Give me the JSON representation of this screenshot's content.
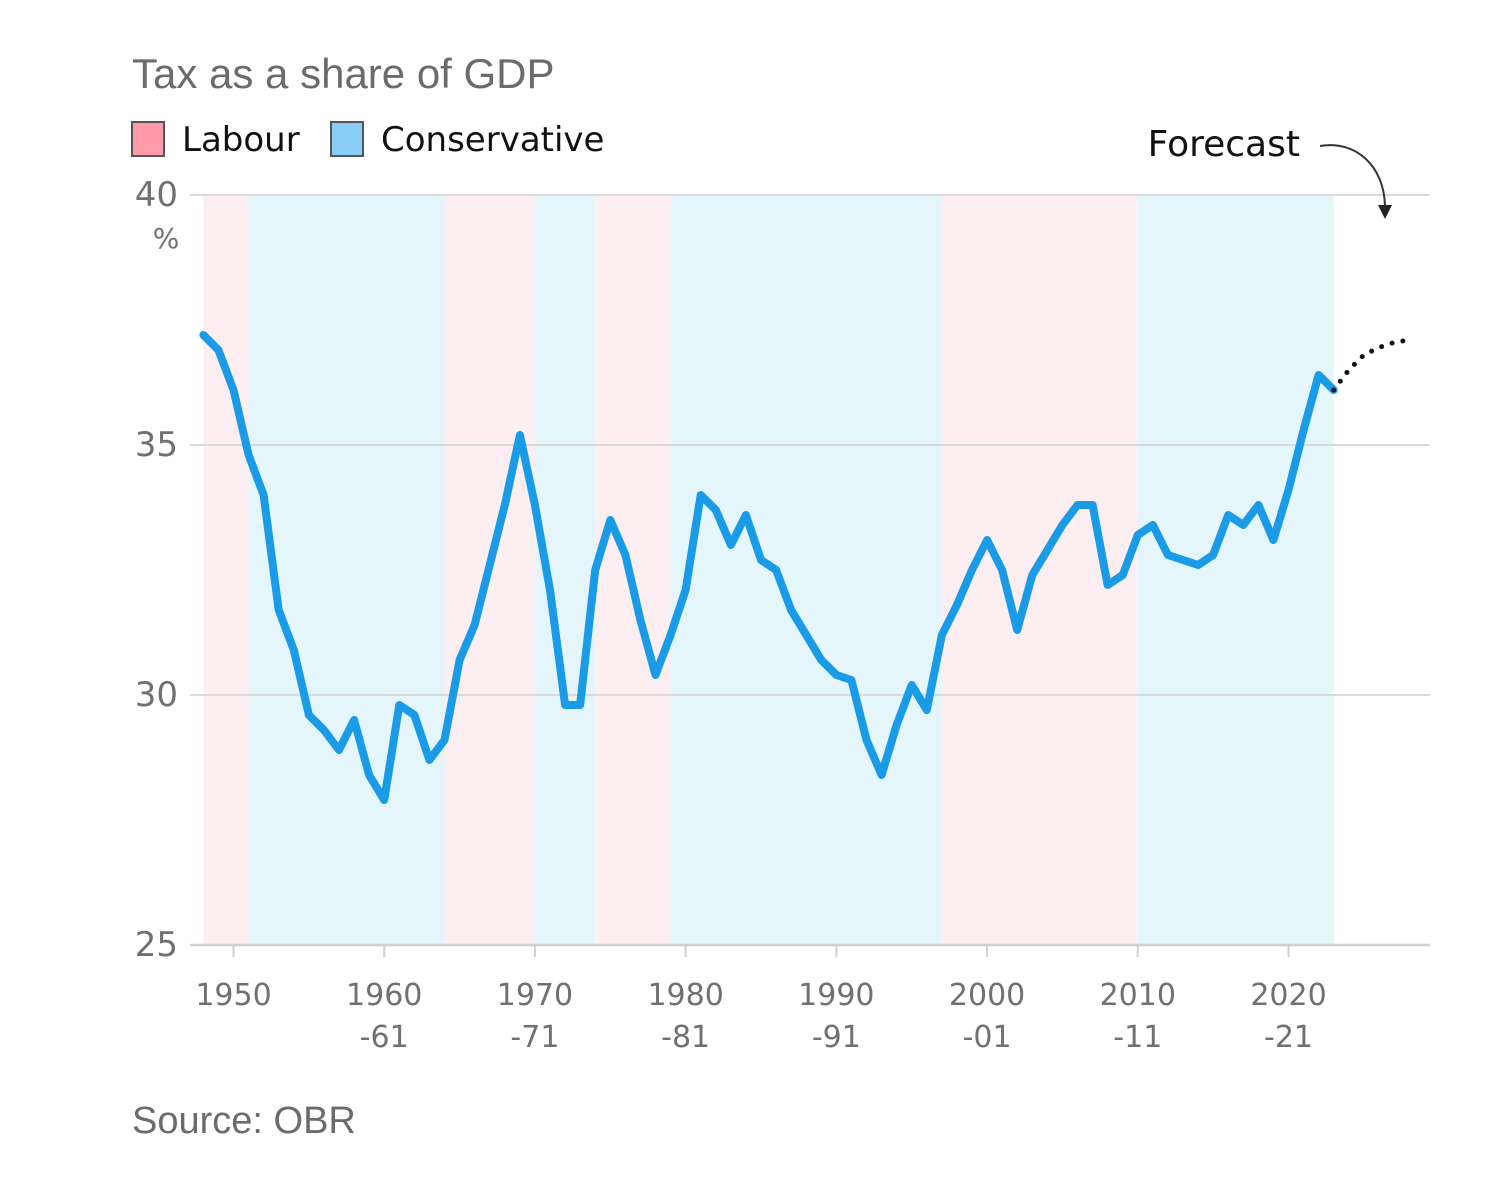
{
  "chart_data": {
    "type": "line",
    "title": "Tax as a share of GDP",
    "unit": "%",
    "source": "Source: OBR",
    "legend": [
      {
        "label": "Labour",
        "color": "#ff9aa8",
        "band_color": "#fdeef1"
      },
      {
        "label": "Conservative",
        "color": "#87cdf5",
        "band_color": "#e4f6fc"
      }
    ],
    "ylim": [
      25,
      40
    ],
    "yticks": [
      25,
      30,
      35,
      40
    ],
    "ytick_labels": [
      "25",
      "30",
      "35",
      "40"
    ],
    "xlim": [
      1948,
      2028
    ],
    "xticks": [
      {
        "x": 1950,
        "lines": [
          "1950"
        ]
      },
      {
        "x": 1960,
        "lines": [
          "1960",
          "-61"
        ]
      },
      {
        "x": 1970,
        "lines": [
          "1970",
          "-71"
        ]
      },
      {
        "x": 1980,
        "lines": [
          "1980",
          "-81"
        ]
      },
      {
        "x": 1990,
        "lines": [
          "1990",
          "-91"
        ]
      },
      {
        "x": 2000,
        "lines": [
          "2000",
          "-01"
        ]
      },
      {
        "x": 2010,
        "lines": [
          "2010",
          "-11"
        ]
      },
      {
        "x": 2020,
        "lines": [
          "2020",
          "-21"
        ]
      }
    ],
    "grid": true,
    "periods": [
      {
        "party": "Labour",
        "start": 1948,
        "end": 1951
      },
      {
        "party": "Conservative",
        "start": 1951,
        "end": 1964
      },
      {
        "party": "Labour",
        "start": 1964,
        "end": 1970
      },
      {
        "party": "Conservative",
        "start": 1970,
        "end": 1974
      },
      {
        "party": "Labour",
        "start": 1974,
        "end": 1979
      },
      {
        "party": "Conservative",
        "start": 1979,
        "end": 1997
      },
      {
        "party": "Labour",
        "start": 1997,
        "end": 2010
      },
      {
        "party": "Conservative",
        "start": 2010,
        "end": 2023
      }
    ],
    "series": [
      {
        "color": "#1a9be8",
        "x": [
          1948,
          1949,
          1950,
          1951,
          1952,
          1953,
          1954,
          1955,
          1956,
          1957,
          1958,
          1959,
          1960,
          1961,
          1962,
          1963,
          1964,
          1965,
          1966,
          1967,
          1968,
          1969,
          1970,
          1971,
          1972,
          1973,
          1974,
          1975,
          1976,
          1977,
          1978,
          1979,
          1980,
          1981,
          1982,
          1983,
          1984,
          1985,
          1986,
          1987,
          1988,
          1989,
          1990,
          1991,
          1992,
          1993,
          1994,
          1995,
          1996,
          1997,
          1998,
          1999,
          2000,
          2001,
          2002,
          2003,
          2004,
          2005,
          2006,
          2007,
          2008,
          2009,
          2010,
          2011,
          2012,
          2013,
          2014,
          2015,
          2016,
          2017,
          2018,
          2019,
          2020,
          2021,
          2022,
          2023
        ],
        "values": [
          37.2,
          36.9,
          36.1,
          34.8,
          34.0,
          31.7,
          30.9,
          29.6,
          29.3,
          28.9,
          29.5,
          28.4,
          27.9,
          29.8,
          29.6,
          28.7,
          29.1,
          30.7,
          31.4,
          32.6,
          33.8,
          35.2,
          33.8,
          32.1,
          29.8,
          29.8,
          32.5,
          33.5,
          32.8,
          31.5,
          30.4,
          31.2,
          32.1,
          34.0,
          33.7,
          33.0,
          33.6,
          32.7,
          32.5,
          31.7,
          31.2,
          30.7,
          30.4,
          30.3,
          29.1,
          28.4,
          29.4,
          30.2,
          29.7,
          31.2,
          31.8,
          32.5,
          33.1,
          32.5,
          31.3,
          32.4,
          32.9,
          33.4,
          33.8,
          33.8,
          32.2,
          32.4,
          33.2,
          33.4,
          32.8,
          32.7,
          32.6,
          32.8,
          33.6,
          33.4,
          33.8,
          33.1,
          34.1,
          35.3,
          36.4,
          36.1
        ]
      },
      {
        "name": "Forecast",
        "color": "#111111",
        "style": "dotted",
        "x": [
          2023,
          2024,
          2025,
          2026,
          2027,
          2028
        ],
        "values": [
          36.1,
          36.5,
          36.8,
          36.95,
          37.05,
          37.1
        ]
      }
    ],
    "annotations": [
      {
        "text": "Forecast",
        "x": 2027,
        "y": 39.5
      }
    ]
  }
}
